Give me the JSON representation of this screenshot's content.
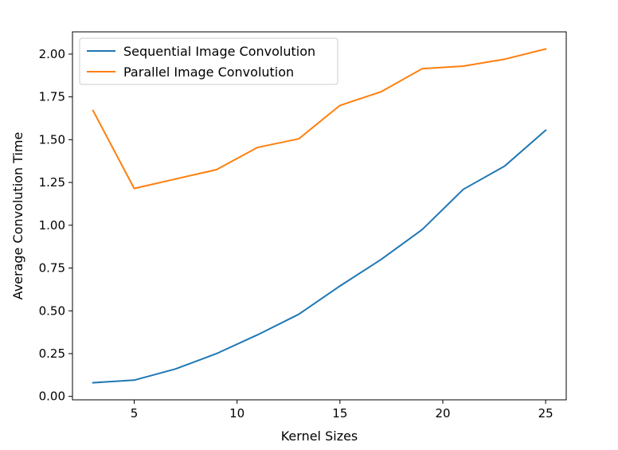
{
  "chart_data": {
    "type": "line",
    "title": "",
    "xlabel": "Kernel Sizes",
    "ylabel": "Average Convolution Time",
    "x": [
      3,
      5,
      7,
      9,
      11,
      13,
      15,
      17,
      19,
      21,
      23,
      25
    ],
    "xlim": [
      2,
      26
    ],
    "ylim": [
      -0.02,
      2.13
    ],
    "xticks": [
      5,
      10,
      15,
      20,
      25
    ],
    "xtick_labels": [
      "5",
      "10",
      "15",
      "20",
      "25"
    ],
    "yticks": [
      0.0,
      0.25,
      0.5,
      0.75,
      1.0,
      1.25,
      1.5,
      1.75,
      2.0
    ],
    "ytick_labels": [
      "0.00",
      "0.25",
      "0.50",
      "0.75",
      "1.00",
      "1.25",
      "1.50",
      "1.75",
      "2.00"
    ],
    "grid": false,
    "legend_position": "top-left",
    "series": [
      {
        "name": "Sequential Image Convolution",
        "color": "#1f77b4",
        "values": [
          0.08,
          0.095,
          0.16,
          0.25,
          0.36,
          0.48,
          0.645,
          0.8,
          0.975,
          1.21,
          1.345,
          1.555
        ]
      },
      {
        "name": "Parallel Image Convolution",
        "color": "#ff7f0e",
        "values": [
          1.67,
          1.215,
          1.27,
          1.325,
          1.455,
          1.505,
          1.7,
          1.78,
          1.915,
          1.93,
          1.97,
          2.03
        ]
      }
    ]
  }
}
